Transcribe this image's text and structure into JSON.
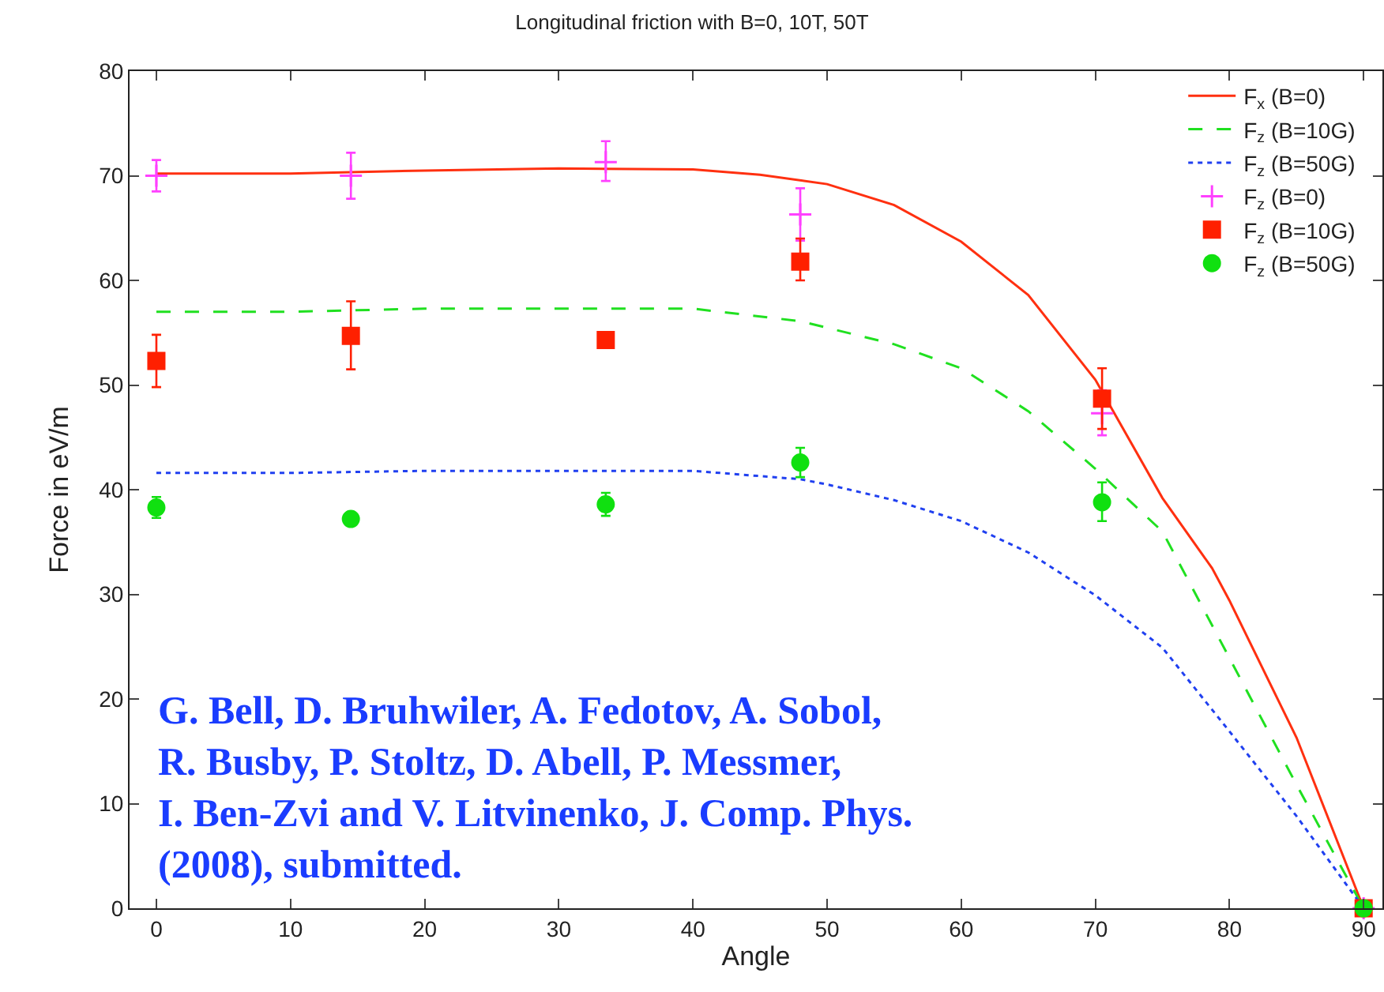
{
  "chart_data": {
    "type": "line",
    "title": "Longitudinal friction with B=0, 10T, 50T",
    "xlabel": "Angle",
    "ylabel": "Force in eV/m",
    "xlim": [
      -2,
      91.4
    ],
    "xticks": [
      0,
      10,
      20,
      30,
      40,
      50,
      60,
      70,
      80,
      90
    ],
    "ylim": [
      0,
      80
    ],
    "yticks": [
      0,
      10,
      20,
      30,
      40,
      50,
      60,
      70,
      80
    ],
    "grid": false,
    "legend": "top right",
    "annotations": [
      "G. Bell, D. Bruhwiler, A. Fedotov, A. Sobol,\nR. Busby, P. Stoltz, D. Abell, P. Messmer,\nI. Ben-Zvi and V. Litvinenko, J. Comp. Phys.\n(2008), submitted."
    ],
    "series": [
      {
        "name": "F$_{x}$ (B=0)",
        "color": "#ff3010",
        "line_style": "solid",
        "marker": "none",
        "x": [
          0,
          10,
          20,
          30,
          40,
          45,
          50,
          55,
          60,
          65,
          70,
          75,
          78.7,
          80,
          85,
          90
        ],
        "values": [
          70.2,
          70.2,
          70.5,
          70.7,
          70.6,
          70.1,
          69.2,
          67.2,
          63.7,
          58.6,
          50.5,
          39.2,
          32.5,
          29.4,
          16.3,
          0
        ]
      },
      {
        "name": "F$_{z}$ (B=10G)",
        "color": "#20e020",
        "line_style": "dashed",
        "marker": "none",
        "x": [
          0,
          10,
          20,
          30,
          40,
          48,
          55,
          60,
          65,
          70,
          75,
          80,
          85,
          90
        ],
        "values": [
          57,
          57,
          57.3,
          57.3,
          57.3,
          56.1,
          53.9,
          51.6,
          47.5,
          42,
          36,
          23.9,
          11.8,
          0
        ]
      },
      {
        "name": "F$_{z}$ (B=50G)",
        "color": "#2040f0",
        "line_style": "dotted",
        "marker": "none",
        "x": [
          0,
          10,
          20,
          30,
          40,
          48,
          50,
          55,
          60,
          65,
          70,
          75,
          80,
          85,
          90
        ],
        "values": [
          41.6,
          41.6,
          41.8,
          41.8,
          41.8,
          41,
          40.5,
          39,
          37,
          34,
          29.9,
          24.9,
          16.9,
          8.8,
          0
        ]
      },
      {
        "name": "F$_{z}$ (B=0)",
        "type": "scatter",
        "color": "#ff40ff",
        "marker": "cross",
        "x": [
          0,
          14.5,
          33.5,
          48,
          70.5,
          90
        ],
        "values": [
          70,
          70,
          71.3,
          66.3,
          47.3,
          0
        ],
        "errors": [
          [
            68.5,
            71.5
          ],
          [
            67.8,
            72.2
          ],
          [
            69.5,
            73.3
          ],
          [
            63.8,
            68.8
          ],
          [
            45.2,
            49.5
          ],
          null
        ]
      },
      {
        "name": "F$_{z}$ (B=10G)",
        "type": "scatter",
        "color": "#ff2000",
        "marker": "square",
        "x": [
          0,
          14.5,
          33.5,
          48,
          70.5,
          90
        ],
        "values": [
          52.3,
          54.7,
          54.3,
          61.8,
          48.7,
          0
        ],
        "errors": [
          [
            49.8,
            54.8
          ],
          [
            51.5,
            58
          ],
          null,
          [
            60,
            64
          ],
          [
            45.8,
            51.6
          ],
          null
        ]
      },
      {
        "name": "F$_{z}$ (B=50G)",
        "type": "scatter",
        "color": "#10e010",
        "marker": "circle",
        "x": [
          0,
          14.5,
          33.5,
          48,
          70.5,
          90
        ],
        "values": [
          38.3,
          37.2,
          38.6,
          42.6,
          38.8,
          0
        ],
        "errors": [
          [
            37.3,
            39.3
          ],
          [
            36.6,
            37.8
          ],
          [
            37.5,
            39.7
          ],
          [
            41.2,
            44
          ],
          [
            37,
            40.7
          ],
          null
        ]
      }
    ]
  }
}
